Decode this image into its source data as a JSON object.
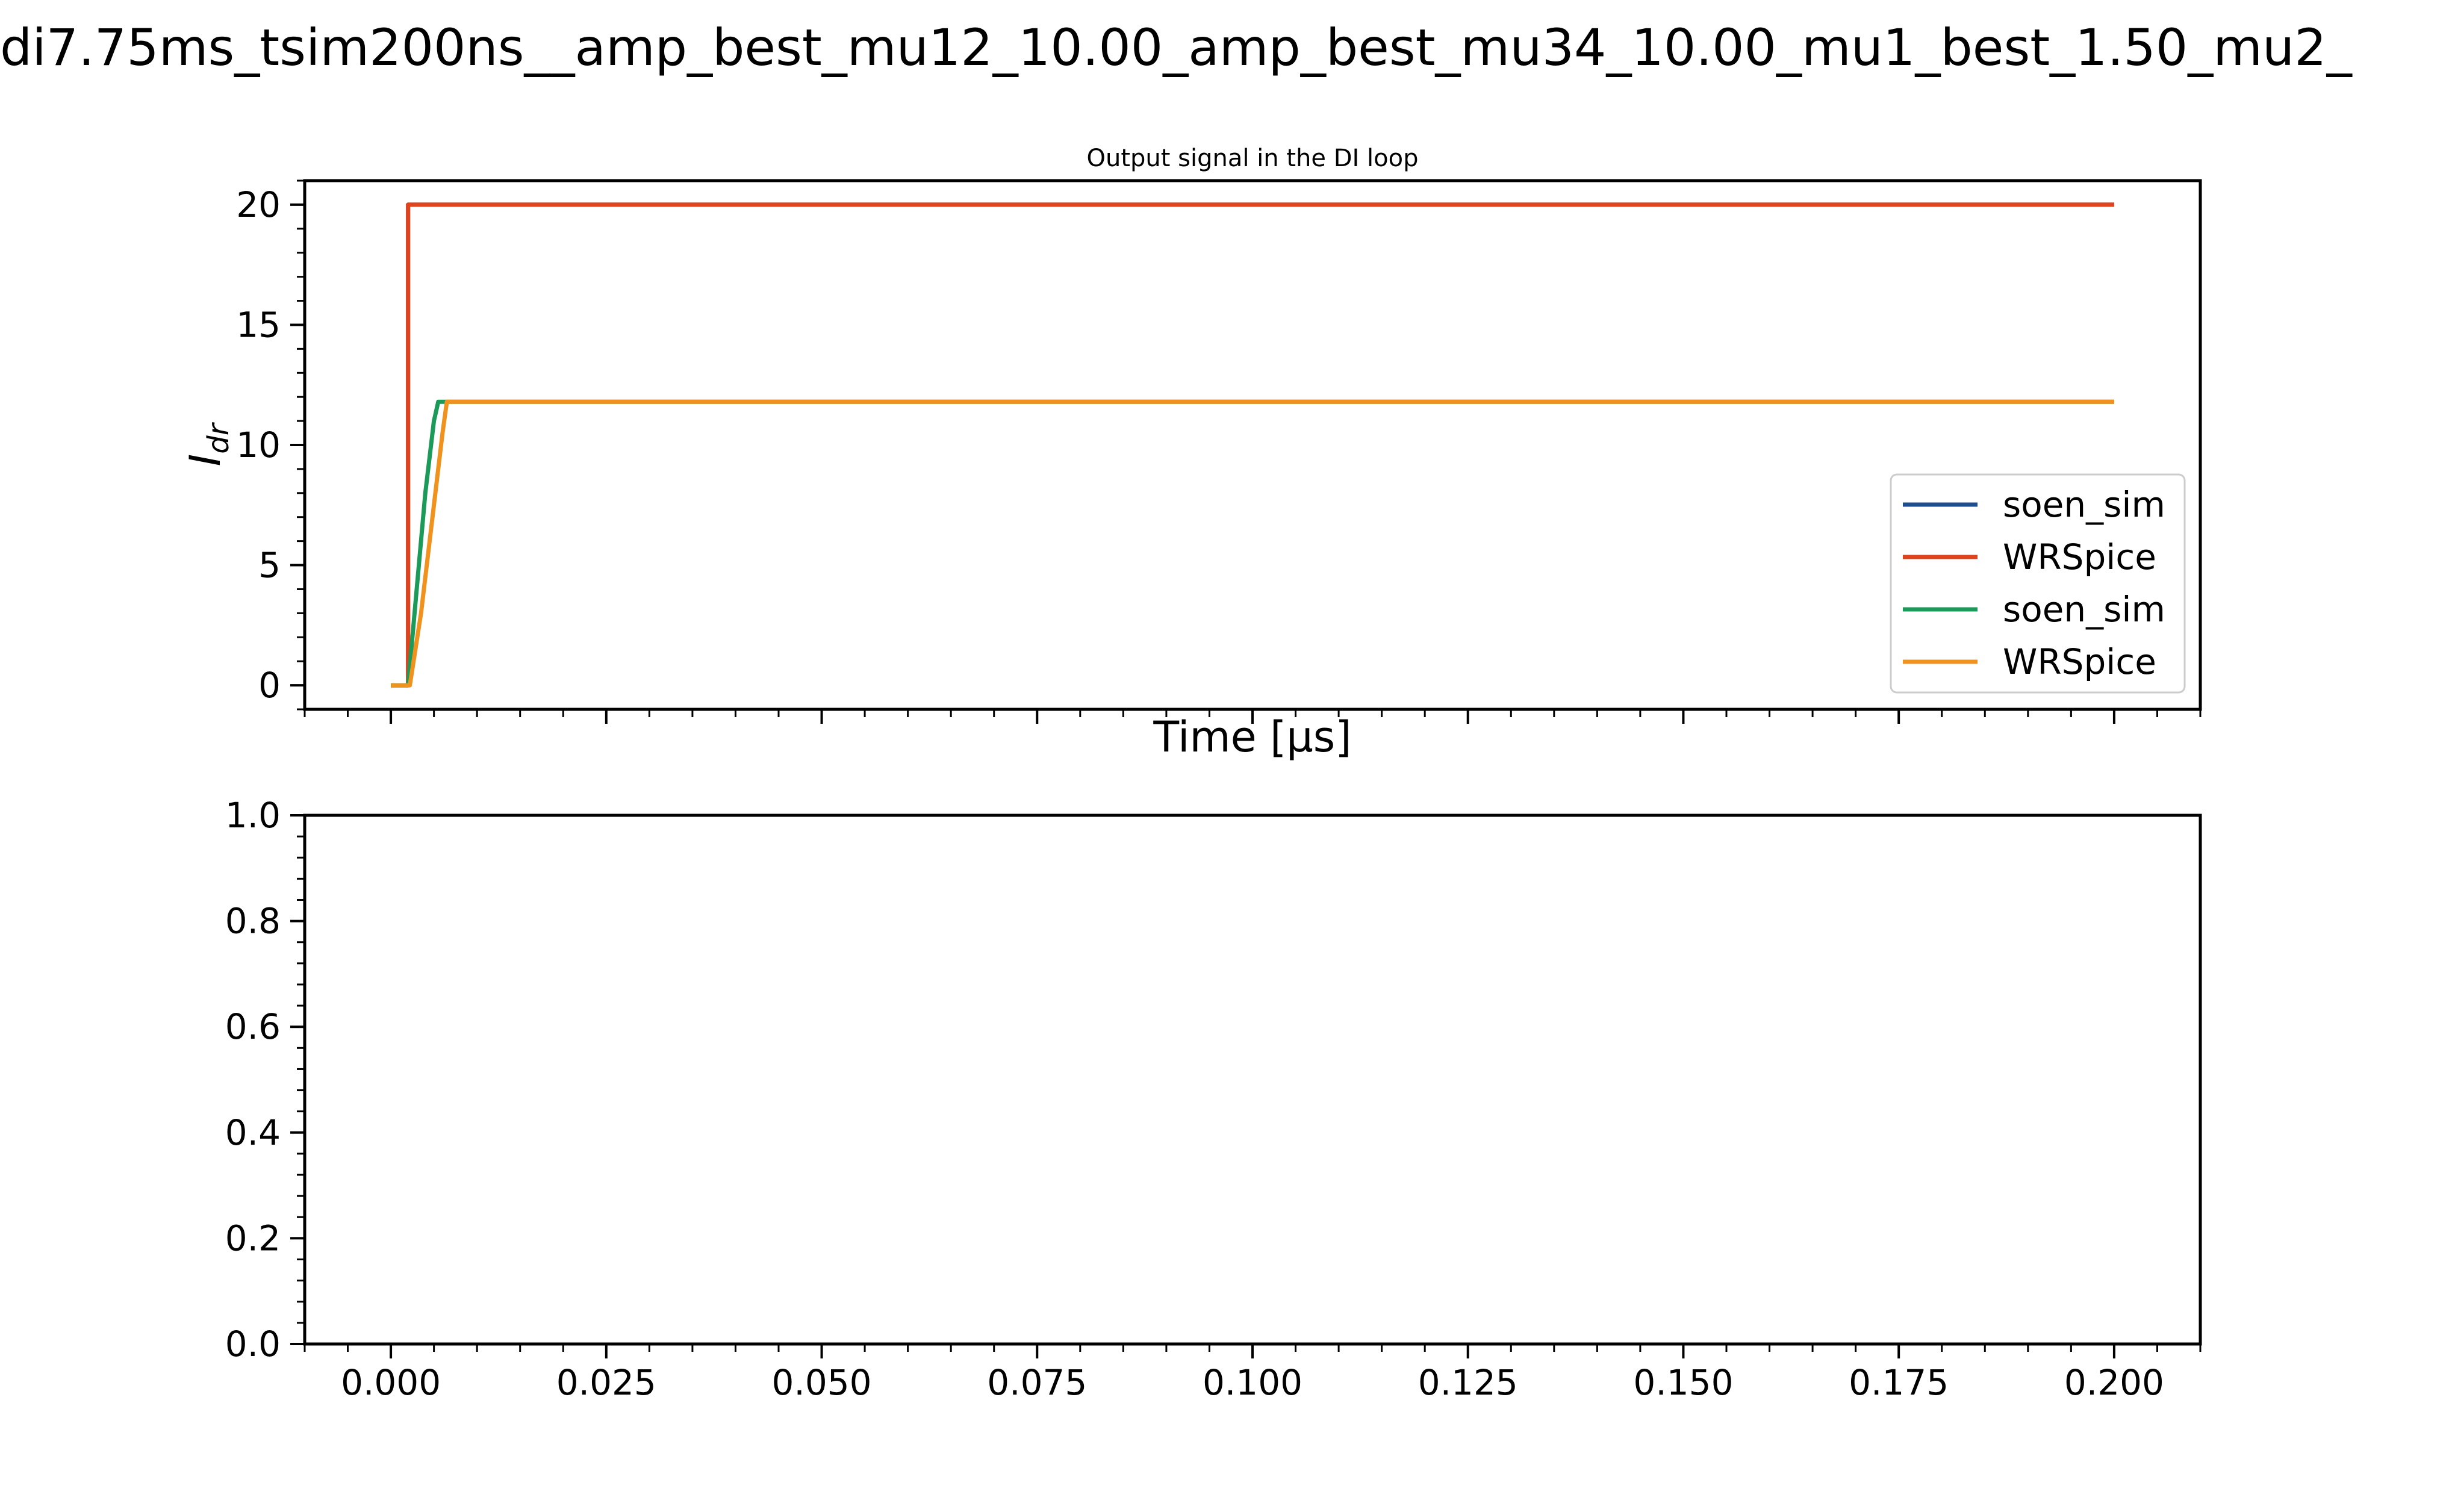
{
  "figure": {
    "suptitle": "di7.75ms_tsim200ns__amp_best_mu12_10.00_amp_best_mu34_10.00_mu1_best_1.50_mu2_"
  },
  "colors": {
    "soen_sim_1": "#1f4e8c",
    "wrspice_1": "#e0441c",
    "soen_sim_2": "#1b9a5a",
    "wrspice_2": "#f0921e"
  },
  "chart_data": [
    {
      "type": "line",
      "title": "Output signal in the DI loop",
      "xlabel": "Time [μs]",
      "ylabel_main": "I",
      "ylabel_sub": "dr",
      "xlim": [
        -0.01,
        0.21
      ],
      "ylim": [
        -1,
        21
      ],
      "yticks": [
        "0",
        "5",
        "10",
        "15",
        "20"
      ],
      "ytick_values": [
        0,
        5,
        10,
        15,
        20
      ],
      "xtick_values": [
        0,
        0.025,
        0.05,
        0.075,
        0.1,
        0.125,
        0.15,
        0.175,
        0.2
      ],
      "xtick_labels_visible": false,
      "grid": false,
      "legend_position": "lower right",
      "series": [
        {
          "name": "soen_sim",
          "color": "#1f4e8c",
          "x": [
            0,
            0.002,
            0.002,
            0.2
          ],
          "y": [
            0,
            0,
            20,
            20
          ]
        },
        {
          "name": "WRSpice",
          "color": "#e0441c",
          "x": [
            0,
            0.002,
            0.002,
            0.2
          ],
          "y": [
            0,
            0,
            20,
            20
          ]
        },
        {
          "name": "soen_sim",
          "color": "#1b9a5a",
          "x": [
            0,
            0.002,
            0.003,
            0.004,
            0.005,
            0.0055,
            0.2
          ],
          "y": [
            0,
            0,
            4,
            8,
            11,
            11.8,
            11.8
          ]
        },
        {
          "name": "WRSpice",
          "color": "#f0921e",
          "x": [
            0,
            0.0022,
            0.0035,
            0.005,
            0.006,
            0.0065,
            0.2
          ],
          "y": [
            0,
            0,
            3,
            7.5,
            10.5,
            11.8,
            11.8
          ]
        }
      ]
    },
    {
      "type": "line",
      "title": "",
      "xlabel": "",
      "xlim": [
        -0.01,
        0.21
      ],
      "ylim": [
        0,
        1
      ],
      "yticks": [
        "0.0",
        "0.2",
        "0.4",
        "0.6",
        "0.8",
        "1.0"
      ],
      "ytick_values": [
        0,
        0.2,
        0.4,
        0.6,
        0.8,
        1.0
      ],
      "xticks": [
        "0.000",
        "0.025",
        "0.050",
        "0.075",
        "0.100",
        "0.125",
        "0.150",
        "0.175",
        "0.200"
      ],
      "xtick_values": [
        0,
        0.025,
        0.05,
        0.075,
        0.1,
        0.125,
        0.15,
        0.175,
        0.2
      ],
      "grid": false,
      "series": []
    }
  ]
}
